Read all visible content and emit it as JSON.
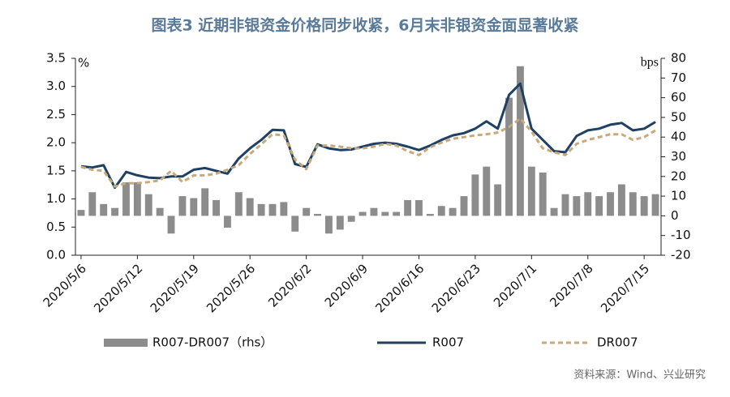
{
  "chart_data": {
    "type": "combo",
    "title": "图表3  近期非银资金价格同步收紧，6月末非银资金面显著收紧",
    "source": "资料来源：Wind、兴业研究",
    "y_label": "%",
    "y2_label": "bps",
    "categories": [
      "2020/5/6",
      null,
      null,
      null,
      null,
      "2020/5/12",
      null,
      null,
      null,
      null,
      "2020/5/19",
      null,
      null,
      null,
      null,
      "2020/5/26",
      null,
      null,
      null,
      null,
      "2020/6/2",
      null,
      null,
      null,
      null,
      "2020/6/9",
      null,
      null,
      null,
      null,
      "2020/6/16",
      null,
      null,
      null,
      null,
      "2020/6/23",
      null,
      null,
      null,
      null,
      "2020/7/1",
      null,
      null,
      null,
      null,
      "2020/7/8",
      null,
      null,
      null,
      null,
      "2020/7/15",
      null
    ],
    "ylim": [
      0,
      3.5
    ],
    "yticks": [
      {
        "value": 0,
        "label": "0.0"
      },
      {
        "value": 0.5,
        "label": "0.5"
      },
      {
        "value": 1,
        "label": "1.0"
      },
      {
        "value": 1.5,
        "label": "1.5"
      },
      {
        "value": 2,
        "label": "2.0"
      },
      {
        "value": 2.5,
        "label": "2.5"
      },
      {
        "value": 3,
        "label": "3.0"
      },
      {
        "value": 3.5,
        "label": "3.5"
      }
    ],
    "y2lim": [
      -20,
      80
    ],
    "y2ticks": [
      -20,
      -10,
      0,
      10,
      20,
      30,
      40,
      50,
      60,
      70,
      80
    ],
    "series": [
      {
        "name": "R007-DR007（rhs）",
        "type": "bar",
        "axis": "y2",
        "color": "#8c8c8c",
        "values": [
          3,
          12,
          6,
          4,
          17,
          17,
          11,
          4,
          -9,
          10,
          9,
          14,
          8,
          -6,
          12,
          9,
          6,
          6,
          7,
          -8,
          4,
          1,
          -9,
          -7,
          -3,
          2,
          4,
          2,
          2,
          8,
          8,
          1,
          5,
          4,
          10,
          21,
          25,
          16,
          60,
          76,
          25,
          22,
          4,
          11,
          10,
          12,
          10,
          12,
          16,
          12,
          10,
          11
        ]
      },
      {
        "name": "R007",
        "type": "line",
        "color": "#1f3f63",
        "line_style": "solid",
        "values": [
          1.58,
          1.56,
          1.6,
          1.2,
          1.48,
          1.42,
          1.38,
          1.37,
          1.4,
          1.4,
          1.52,
          1.55,
          1.5,
          1.45,
          1.72,
          1.9,
          2.05,
          2.23,
          2.22,
          1.62,
          1.57,
          1.97,
          1.9,
          1.87,
          1.88,
          1.93,
          1.98,
          2.0,
          1.98,
          1.93,
          1.87,
          1.95,
          2.05,
          2.13,
          2.17,
          2.25,
          2.38,
          2.25,
          2.85,
          3.05,
          2.25,
          2.05,
          1.85,
          1.83,
          2.12,
          2.22,
          2.25,
          2.32,
          2.35,
          2.22,
          2.25,
          2.37
        ]
      },
      {
        "name": "DR007",
        "type": "line",
        "color": "#c8a97a",
        "line_style": "dashed",
        "values": [
          1.57,
          1.52,
          1.5,
          1.22,
          1.28,
          1.28,
          1.3,
          1.33,
          1.5,
          1.3,
          1.42,
          1.42,
          1.45,
          1.52,
          1.6,
          1.8,
          1.97,
          2.15,
          2.13,
          1.7,
          1.53,
          1.95,
          1.95,
          1.93,
          1.9,
          1.9,
          1.93,
          1.98,
          1.95,
          1.85,
          1.78,
          1.92,
          2.0,
          2.07,
          2.1,
          2.13,
          2.15,
          2.18,
          2.28,
          2.43,
          2.2,
          1.9,
          1.83,
          1.78,
          1.98,
          2.05,
          2.1,
          2.15,
          2.15,
          2.05,
          2.1,
          2.22
        ]
      }
    ]
  }
}
